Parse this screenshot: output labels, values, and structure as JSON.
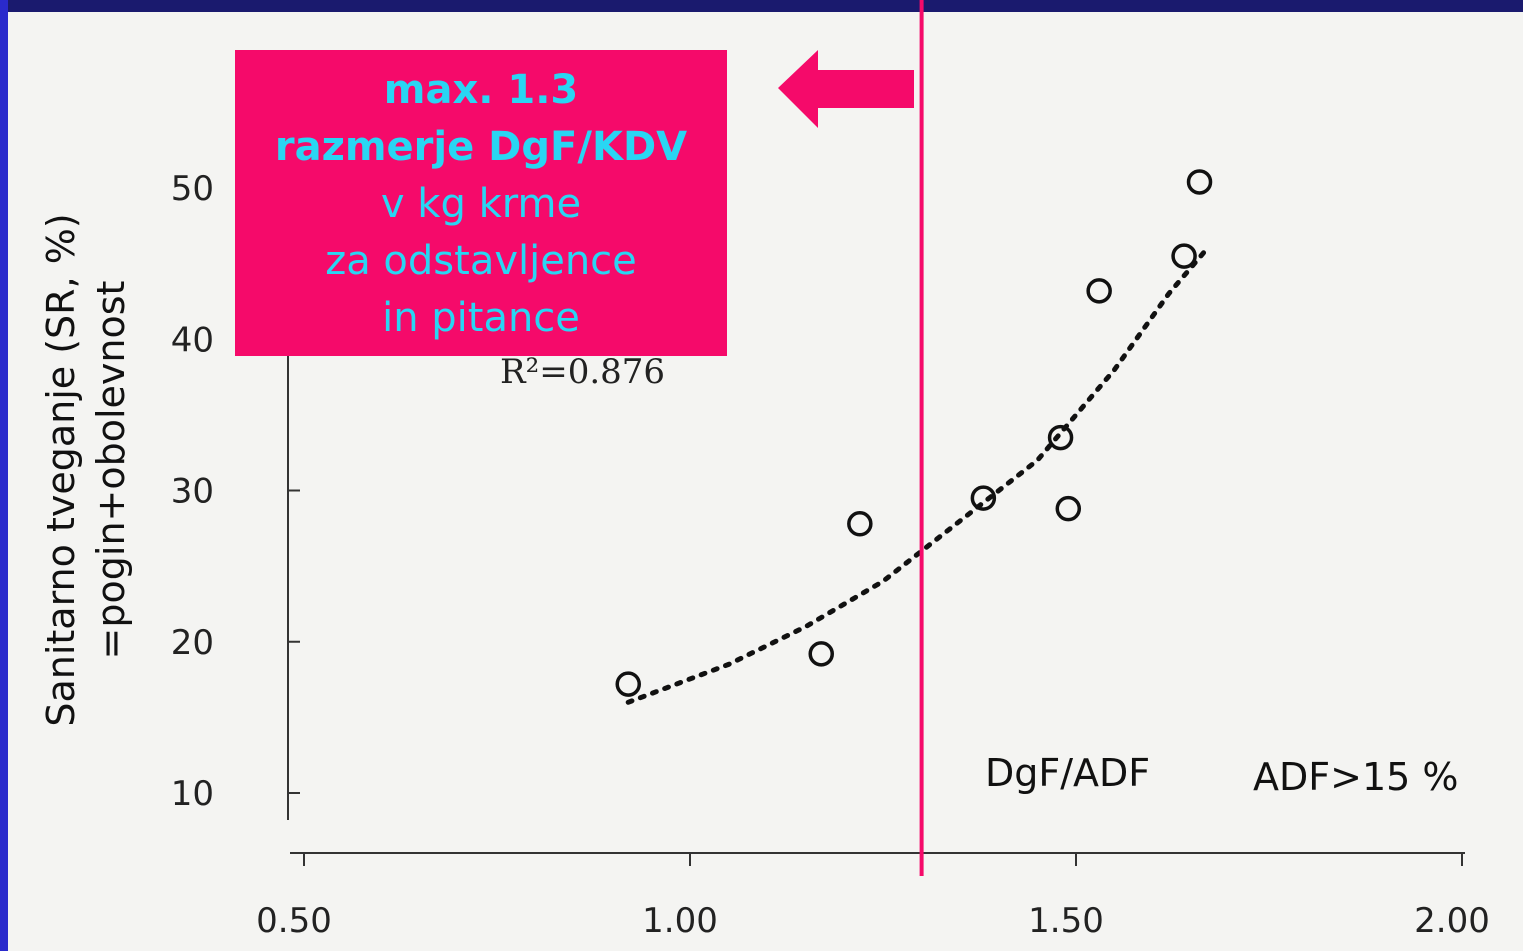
{
  "slide": {
    "accent": "#f50a6a",
    "callout": {
      "line1": "max. 1.3",
      "line2": "razmerje DgF/KDV",
      "line3": "v kg krme",
      "line4": "za odstavljence",
      "line5": "in pitance",
      "text_color": "#29d6f3"
    },
    "y_axis_title": "Sanitarno tveganje (SR, %)",
    "y_axis_subtitle": "=pogin+obolevnost",
    "r_squared": "R²=0.876",
    "x_label": "DgF/ADF",
    "condition_label": "ADF>15 %"
  },
  "chart_data": {
    "type": "scatter",
    "xlim": [
      0.5,
      2.0
    ],
    "ylim": [
      10,
      50
    ],
    "x_ticks": [
      "0.50",
      "1.00",
      "1.50",
      "2.00"
    ],
    "y_ticks": [
      "10",
      "20",
      "30",
      "40",
      "50"
    ],
    "points": [
      {
        "x": 0.92,
        "y": 17.2
      },
      {
        "x": 1.17,
        "y": 19.2
      },
      {
        "x": 1.22,
        "y": 27.8
      },
      {
        "x": 1.38,
        "y": 29.5
      },
      {
        "x": 1.48,
        "y": 33.5
      },
      {
        "x": 1.49,
        "y": 28.8
      },
      {
        "x": 1.53,
        "y": 43.2
      },
      {
        "x": 1.64,
        "y": 45.5
      },
      {
        "x": 1.66,
        "y": 50.4
      }
    ],
    "trend": [
      {
        "x": 0.92,
        "y": 16.0
      },
      {
        "x": 1.05,
        "y": 18.5
      },
      {
        "x": 1.15,
        "y": 21.0
      },
      {
        "x": 1.25,
        "y": 24.0
      },
      {
        "x": 1.35,
        "y": 28.0
      },
      {
        "x": 1.45,
        "y": 32.0
      },
      {
        "x": 1.55,
        "y": 38.0
      },
      {
        "x": 1.62,
        "y": 43.0
      },
      {
        "x": 1.67,
        "y": 46.0
      }
    ],
    "threshold_x": 1.3,
    "grid": false,
    "legend": "none"
  }
}
